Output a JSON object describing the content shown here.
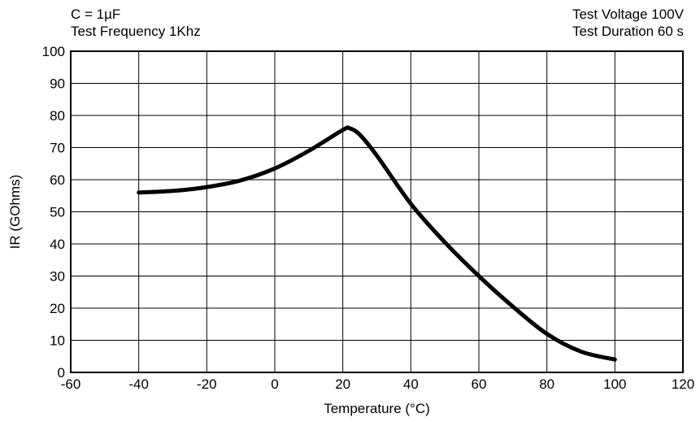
{
  "chart_data": {
    "type": "line",
    "annotations": {
      "top_left": [
        "C = 1µF",
        "Test Frequency 1Khz"
      ],
      "top_right": [
        "Test Voltage 100V",
        "Test Duration 60 s"
      ]
    },
    "xlabel": "Temperature (°C)",
    "ylabel": "IR (GOhms)",
    "xlim": [
      -60,
      120
    ],
    "ylim": [
      0,
      100
    ],
    "xticks": [
      -60,
      -40,
      -20,
      0,
      20,
      40,
      60,
      80,
      100,
      120
    ],
    "yticks": [
      0,
      10,
      20,
      30,
      40,
      50,
      60,
      70,
      80,
      90,
      100
    ],
    "grid": true,
    "series": [
      {
        "color": "#000000",
        "x": [
          -40,
          -30,
          -20,
          -10,
          0,
          10,
          20,
          22,
          25,
          30,
          40,
          50,
          60,
          70,
          80,
          90,
          100
        ],
        "y": [
          56,
          56.5,
          57.7,
          59.8,
          63.5,
          69,
          75.5,
          76,
          74,
          67.5,
          52.5,
          40.5,
          30,
          20.5,
          12,
          6.5,
          4
        ]
      }
    ]
  }
}
